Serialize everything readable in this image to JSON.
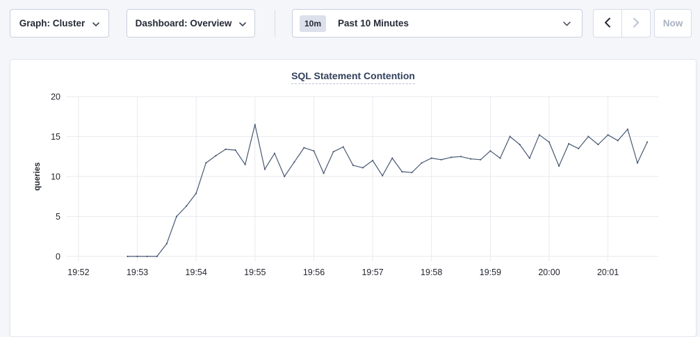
{
  "page": {
    "background": "#f5f6fa",
    "card_background": "#ffffff"
  },
  "toolbar": {
    "graph_dropdown": {
      "label": "Graph: Cluster",
      "icon": "chevron-down"
    },
    "dashboard_dropdown": {
      "label": "Dashboard: Overview",
      "icon": "chevron-down"
    },
    "time_selector": {
      "badge": "10m",
      "label": "Past 10 Minutes",
      "icon": "chevron-down"
    },
    "prev_button": {
      "icon": "chevron-left",
      "enabled": true
    },
    "next_button": {
      "icon": "chevron-right",
      "enabled": false
    },
    "now_label": "Now"
  },
  "chart_data": {
    "type": "line",
    "title": "SQL Statement Contention",
    "ylabel": "queries",
    "ylim": [
      0,
      20
    ],
    "yticks": [
      0,
      5,
      10,
      15,
      20
    ],
    "xticks": [
      "19:52",
      "19:53",
      "19:54",
      "19:55",
      "19:56",
      "19:57",
      "19:58",
      "19:59",
      "20:00",
      "20:01"
    ],
    "x_window": {
      "start": "19:51:48",
      "end": "20:01:52"
    },
    "grid": true,
    "grid_color": "#e9eaef",
    "legend": "none",
    "series": [
      {
        "name": "SQL Statement Contention",
        "color": "#475872",
        "x": [
          "19:52:50",
          "19:53:00",
          "19:53:10",
          "19:53:20",
          "19:53:30",
          "19:53:40",
          "19:53:50",
          "19:54:00",
          "19:54:10",
          "19:54:20",
          "19:54:30",
          "19:54:40",
          "19:54:50",
          "19:55:00",
          "19:55:10",
          "19:55:20",
          "19:55:30",
          "19:55:40",
          "19:55:50",
          "19:56:00",
          "19:56:10",
          "19:56:20",
          "19:56:30",
          "19:56:40",
          "19:56:50",
          "19:57:00",
          "19:57:10",
          "19:57:20",
          "19:57:30",
          "19:57:40",
          "19:57:50",
          "19:58:00",
          "19:58:10",
          "19:58:20",
          "19:58:30",
          "19:58:40",
          "19:58:50",
          "19:59:00",
          "19:59:10",
          "19:59:20",
          "19:59:30",
          "19:59:40",
          "19:59:50",
          "20:00:00",
          "20:00:10",
          "20:00:20",
          "20:00:30",
          "20:00:40",
          "20:00:50",
          "20:01:00",
          "20:01:10",
          "20:01:20",
          "20:01:30",
          "20:01:40"
        ],
        "values": [
          0,
          0,
          0,
          0,
          1.6,
          5,
          6.3,
          7.9,
          11.7,
          12.6,
          13.4,
          13.3,
          11.5,
          16.5,
          10.9,
          12.9,
          10,
          11.8,
          13.6,
          13.2,
          10.4,
          13.1,
          13.7,
          11.4,
          11.1,
          12,
          10.1,
          12.3,
          10.6,
          10.5,
          11.7,
          12.3,
          12.1,
          12.4,
          12.5,
          12.2,
          12.1,
          13.2,
          12.3,
          15,
          14,
          12.3,
          15.2,
          14.3,
          11.3,
          14.1,
          13.5,
          15,
          14,
          15.2,
          14.5,
          15.9,
          11.7,
          14.3
        ]
      }
    ]
  }
}
